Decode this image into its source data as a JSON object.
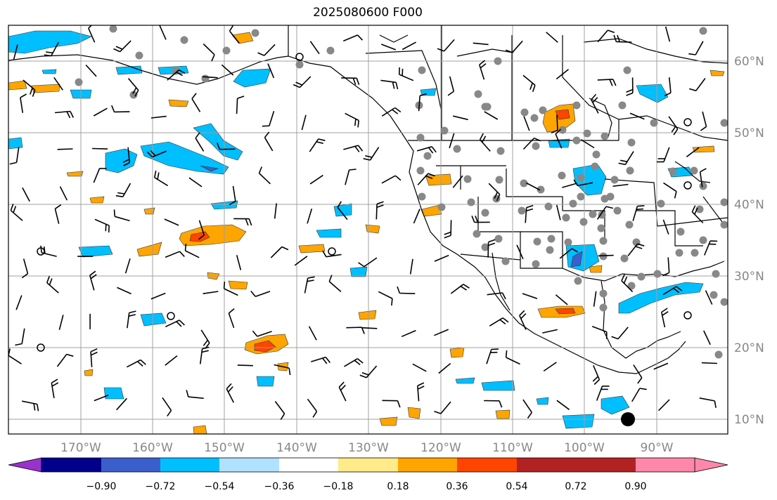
{
  "title": "2025080600 F000",
  "map": {
    "lon_range": [
      -180,
      -80
    ],
    "lat_range": [
      8,
      65
    ],
    "lon_ticks": [
      "170°W",
      "160°W",
      "150°W",
      "140°W",
      "130°W",
      "120°W",
      "110°W",
      "100°W",
      "90°W"
    ],
    "lat_ticks": [
      "60°N",
      "50°N",
      "40°N",
      "30°N",
      "20°N",
      "10°N"
    ],
    "grid": true,
    "tick_label_color": "#888888"
  },
  "colorbar": {
    "tick_labels": [
      "−0.90",
      "−0.72",
      "−0.54",
      "−0.36",
      "−0.18",
      "0.18",
      "0.36",
      "0.54",
      "0.72",
      "0.90"
    ],
    "colors": [
      "#9932cc",
      "#00008b",
      "#3a5fcd",
      "#00bfff",
      "#b0e2ff",
      "#ffffff",
      "#ffeb8a",
      "#ffa500",
      "#ff4500",
      "#b22222",
      "#ff88aa"
    ],
    "extend": "both"
  }
}
